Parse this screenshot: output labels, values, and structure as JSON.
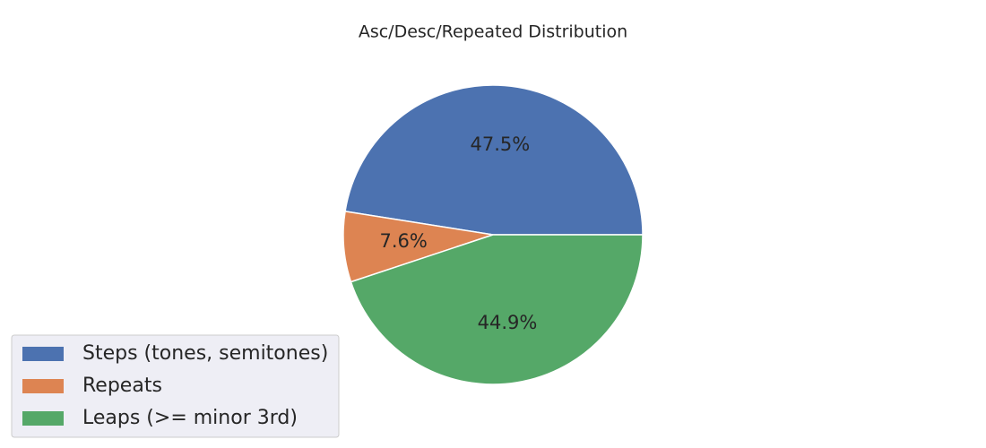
{
  "chart_data": {
    "type": "pie",
    "title": "Asc/Desc/Repeated Distribution",
    "categories": [
      "Steps (tones, semitones)",
      "Repeats",
      "Leaps (>= minor 3rd)"
    ],
    "values": [
      47.5,
      7.6,
      44.9
    ],
    "value_labels": [
      "47.5%",
      "7.6%",
      "44.9%"
    ],
    "colors": [
      "#4c72b0",
      "#dd8452",
      "#55a868"
    ],
    "legend": "lower left"
  }
}
